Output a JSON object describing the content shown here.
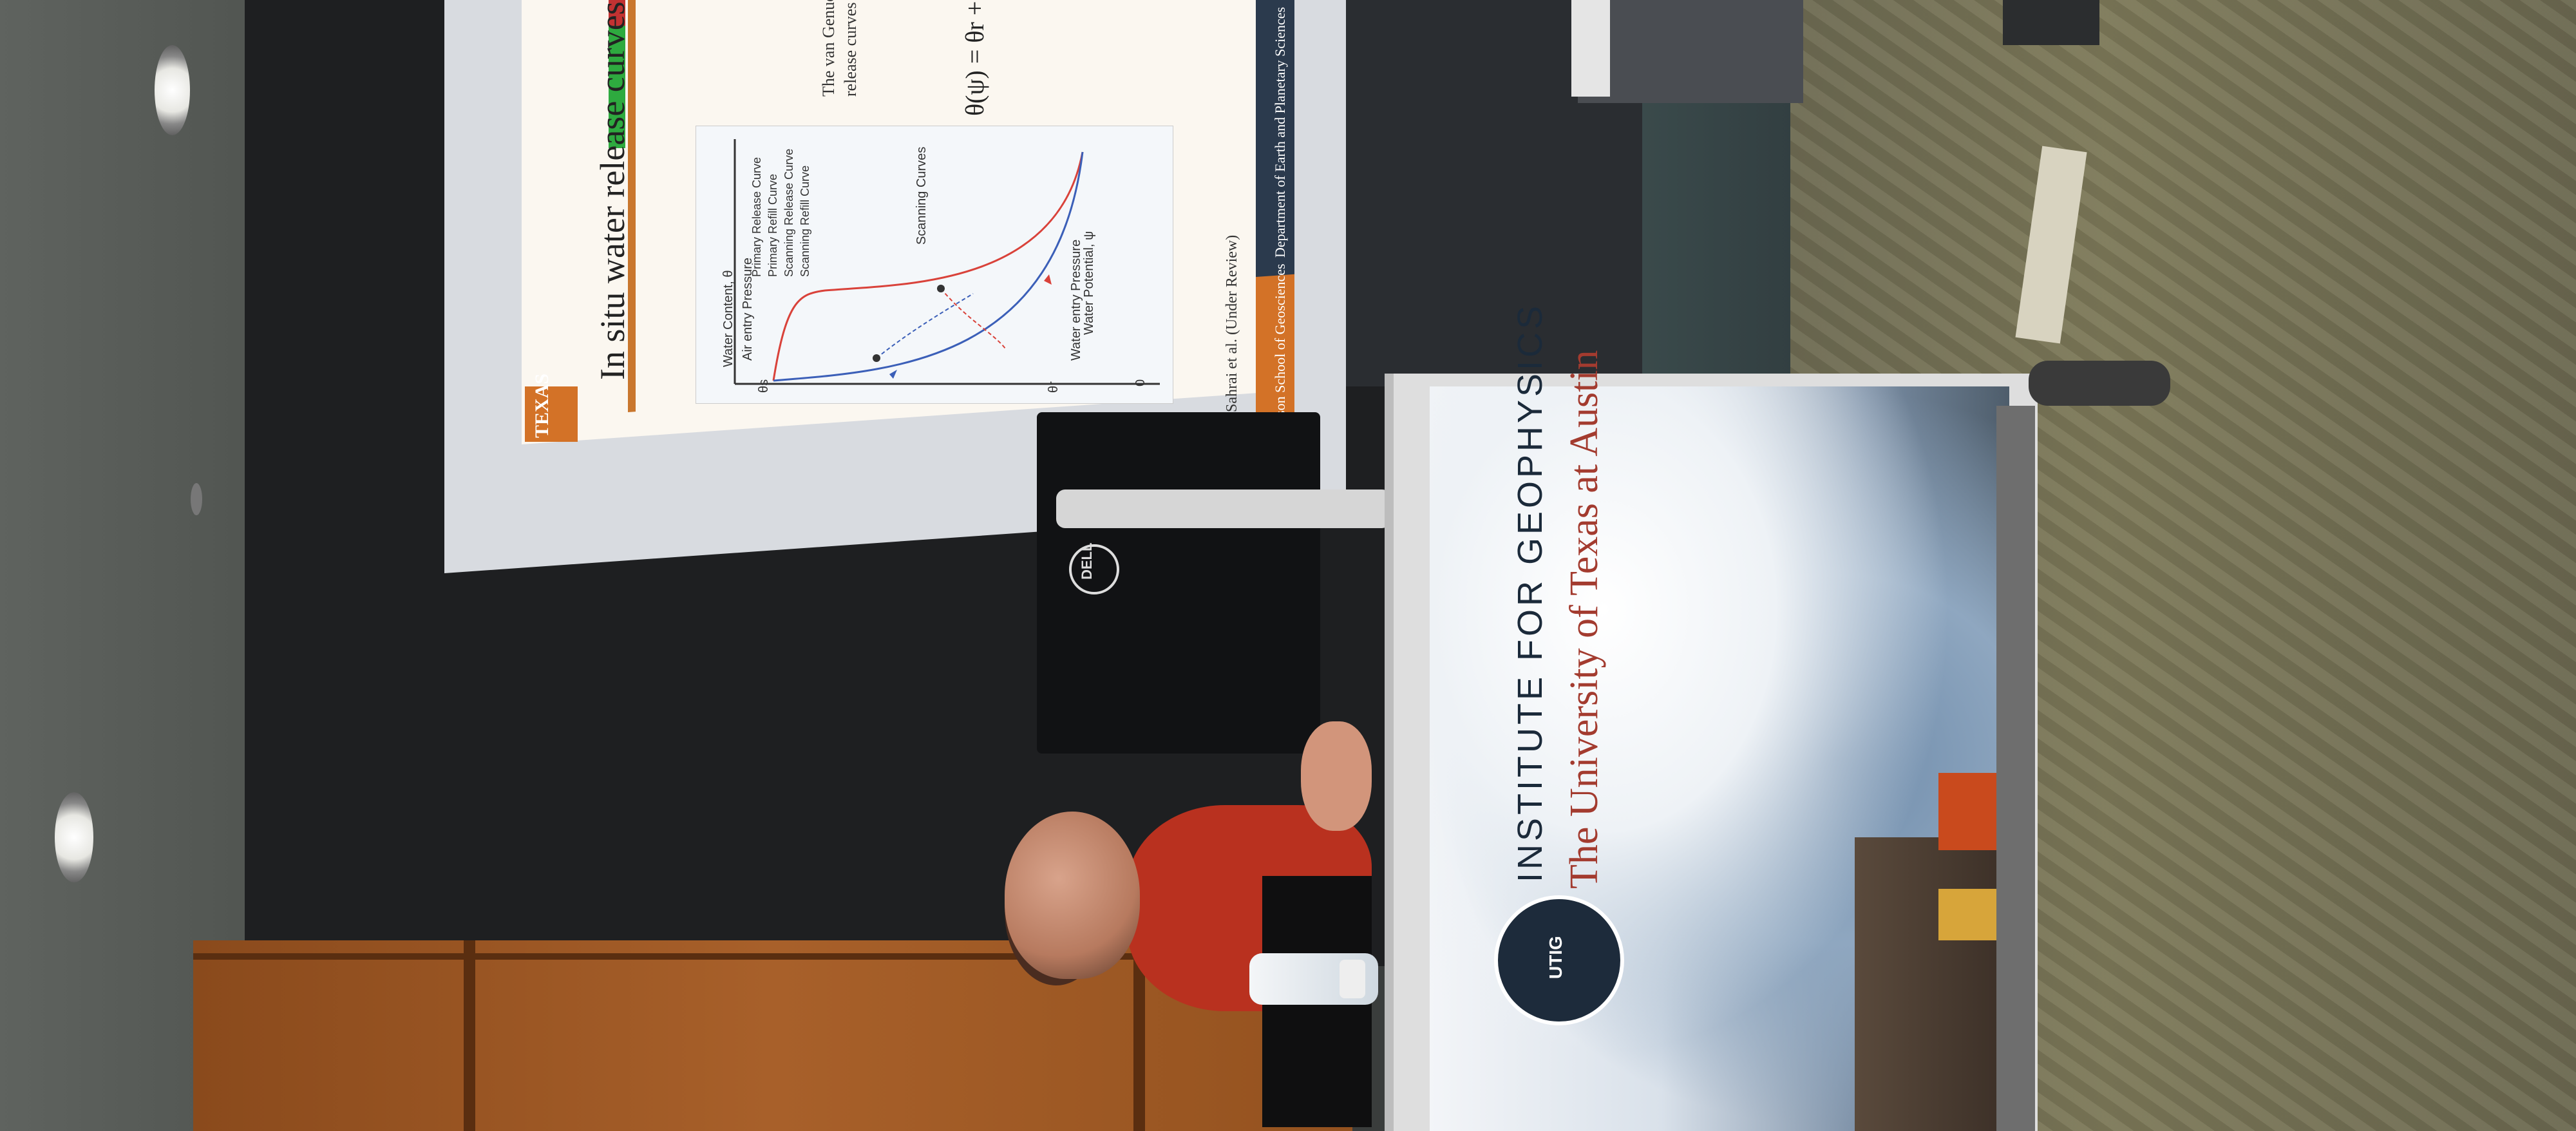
{
  "slide": {
    "title": "In situ water release curves show hysteresis",
    "texas_label": "TEXAS",
    "body_text": "The van Genuchten physics can be appl release curves from",
    "equation": "θ(ψ) = θr +",
    "citation": "Sahrai et al. (Under Review)",
    "footer_left": "Jackson School of Geosciences",
    "footer_right": "Department of Earth and Planetary Sciences"
  },
  "chart_data": {
    "type": "line",
    "xlabel": "Water Potential, ψ",
    "ylabel": "Water Content, θ",
    "y_ticks": [
      "θs",
      "θr"
    ],
    "x_ticks": [
      "0"
    ],
    "annotations": [
      "Air entry Pressure",
      "Water entry Pressure",
      "Scanning Curves"
    ],
    "legend": [
      "Primary Release Curve",
      "Primary Refill Curve",
      "Scanning Release Curve",
      "Scanning Refill Curve"
    ],
    "colors": {
      "release": "#d9423a",
      "refill": "#3b5fb8",
      "scan_release": "#d9423a",
      "scan_refill": "#3b5fb8"
    }
  },
  "monitor": {
    "brand": "DELL"
  },
  "podium": {
    "institute": "INSTITUTE FOR GEOPHYSICS",
    "university": "The University of Texas at Austin",
    "logo_text": "UTIG"
  }
}
